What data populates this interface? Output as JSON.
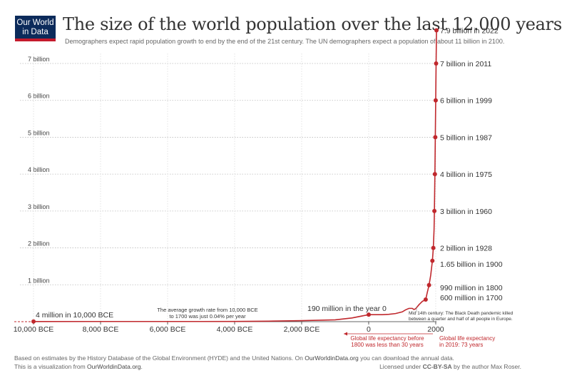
{
  "logo": {
    "line1": "Our World",
    "line2": "in Data"
  },
  "header": {
    "title": "The size of the world population over the last 12.000 years",
    "subtitle": "Demographers expect rapid population growth to end by the end of the 21st century. The UN demographers expect a population of about 11 billion in 2100."
  },
  "footer": {
    "line1_pre": "Based on estimates by the History Database of the Global Environment (HYDE) and the United Nations. On ",
    "line1_link": "OurWorldinData.org",
    "line1_post": " you can download the annual data.",
    "line2_pre": "This is a visualization from ",
    "line2_link": "OurWorldinData.org",
    "line2_post": ".",
    "license_pre": "Licensed under ",
    "license_link": "CC-BY-SA",
    "license_post": " by the author Max Roser."
  },
  "chart_data": {
    "type": "line",
    "xlim": [
      -10000,
      2022
    ],
    "ylim": [
      0,
      7.9
    ],
    "y_unit": "billion",
    "y_ticks": [
      {
        "value": 1,
        "label": "1 billion"
      },
      {
        "value": 2,
        "label": "2 billion"
      },
      {
        "value": 3,
        "label": "3 billion"
      },
      {
        "value": 4,
        "label": "4 billion"
      },
      {
        "value": 5,
        "label": "5 billion"
      },
      {
        "value": 6,
        "label": "6 billion"
      },
      {
        "value": 7,
        "label": "7 billion"
      }
    ],
    "x_ticks": [
      {
        "value": -10000,
        "label": "10,000 BCE"
      },
      {
        "value": -8000,
        "label": "8,000 BCE"
      },
      {
        "value": -6000,
        "label": "6,000 BCE"
      },
      {
        "value": -4000,
        "label": "4,000 BCE"
      },
      {
        "value": -2000,
        "label": "2,000 BCE"
      },
      {
        "value": 0,
        "label": "0"
      },
      {
        "value": 2000,
        "label": "2000"
      }
    ],
    "series": [
      {
        "name": "World population",
        "x": [
          -10000,
          -8000,
          -6000,
          -5000,
          -4000,
          -3000,
          -2000,
          -1000,
          -500,
          0,
          200,
          400,
          600,
          800,
          1000,
          1100,
          1200,
          1300,
          1350,
          1400,
          1500,
          1600,
          1700,
          1750,
          1800,
          1850,
          1900,
          1928,
          1950,
          1960,
          1975,
          1987,
          1999,
          2011,
          2022
        ],
        "values": [
          0.004,
          0.005,
          0.005,
          0.005,
          0.007,
          0.014,
          0.027,
          0.05,
          0.1,
          0.19,
          0.19,
          0.19,
          0.2,
          0.22,
          0.265,
          0.32,
          0.36,
          0.36,
          0.33,
          0.35,
          0.46,
          0.55,
          0.6,
          0.8,
          0.99,
          1.26,
          1.65,
          2.0,
          2.5,
          3.0,
          4.0,
          5.0,
          6.0,
          7.0,
          7.9
        ]
      }
    ],
    "milestones": [
      {
        "x": -10000,
        "y": 0.004,
        "label": "4 million in 10,000 BCE"
      },
      {
        "x": 0,
        "y": 0.19,
        "label": "190 million in the year 0"
      },
      {
        "x": 1700,
        "y": 0.6,
        "label": "600 million in 1700"
      },
      {
        "x": 1800,
        "y": 0.99,
        "label": "990 million in 1800"
      },
      {
        "x": 1900,
        "y": 1.65,
        "label": "1.65 billion in 1900"
      },
      {
        "x": 1928,
        "y": 2.0,
        "label": "2 billion in 1928"
      },
      {
        "x": 1960,
        "y": 3.0,
        "label": "3 billion in 1960"
      },
      {
        "x": 1975,
        "y": 4.0,
        "label": "4 billion in 1975"
      },
      {
        "x": 1987,
        "y": 5.0,
        "label": "5 billion in 1987"
      },
      {
        "x": 1999,
        "y": 6.0,
        "label": "6 billion in 1999"
      },
      {
        "x": 2011,
        "y": 7.0,
        "label": "7 billion in 2011"
      },
      {
        "x": 2022,
        "y": 7.9,
        "label": "7.9 billion in 2022"
      }
    ],
    "annotations": {
      "growth_rate": [
        "The average growth rate from 10,000 BCE",
        "to 1700 was just  0.04% per year"
      ],
      "black_death": [
        "Mid 14th century: The Black Death pandemic killed",
        "between a quarter and half of all people in Europe."
      ],
      "life_before": [
        "Global life expectancy before",
        "1800 was less than 30 years"
      ],
      "life_2019": [
        "Global life expectancy",
        "in 2019: 73 years"
      ]
    },
    "colors": {
      "line": "#c0282d",
      "grid": "#bbbbbb",
      "axis": "#333333",
      "annotation_red": "#c0282d"
    }
  }
}
